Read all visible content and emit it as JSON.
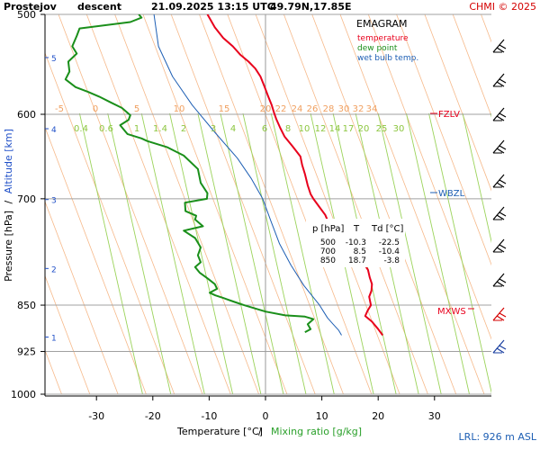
{
  "header": {
    "station": "Prostejov",
    "phase": "descent",
    "datetime": "21.09.2025 13:15 UTC",
    "coords": "49.79N,17.85E",
    "credit": "CHMI © 2025"
  },
  "chart_data": {
    "type": "line",
    "title": "EMAGRAM",
    "xlabel_temperature": "Temperature [°C]",
    "xlabel_separator": "/",
    "xlabel_mixing": "Mixing ratio [g/kg]",
    "ylabel_pressure": "Pressure [hPa]",
    "ylabel_separator": "/",
    "ylabel_altitude": "Altitude [km]",
    "xlim": [
      -39,
      40
    ],
    "ylim": [
      1000,
      500
    ],
    "x_ticks": [
      -30,
      -20,
      -10,
      0,
      10,
      20,
      30
    ],
    "pressure_ticks": [
      500,
      600,
      700,
      850,
      925,
      1000
    ],
    "altitude_ticks": [
      {
        "label": "1",
        "p": 901
      },
      {
        "label": "2",
        "p": 795
      },
      {
        "label": "3",
        "p": 701
      },
      {
        "label": "4",
        "p": 616
      },
      {
        "label": "5",
        "p": 541
      }
    ],
    "isotherm_labels": [
      "-5",
      "0",
      "5",
      "10",
      "15",
      "20",
      "22",
      "24",
      "26",
      "28",
      "30",
      "32",
      "34"
    ],
    "mixing_ratio_labels": [
      "0.4",
      "0.6",
      "1",
      "1.4",
      "2",
      "3",
      "4",
      "6",
      "8",
      "10",
      "12",
      "14",
      "17",
      "20",
      "25",
      "30"
    ],
    "legend": {
      "temperature": "temperature",
      "dew_point": "dew point",
      "wet_bulb": "wet bulb temp."
    },
    "levels": {
      "fzlv": {
        "label": "FZLV",
        "p": 600
      },
      "wbzl": {
        "label": "WBZL",
        "p": 693
      },
      "mxws": {
        "label": "MXWS",
        "p": 850
      }
    },
    "lrl": "LRL: 926 m ASL",
    "table": {
      "headers": [
        "p [hPa]",
        "T",
        "Td [°C]"
      ],
      "rows": [
        [
          "500",
          "-10.3",
          "-22.5"
        ],
        [
          "700",
          "8.5",
          "-10.4"
        ],
        [
          "850",
          "18.7",
          "-3.8"
        ]
      ]
    },
    "series": [
      {
        "name": "temperature",
        "color": "#e8001c",
        "points": [
          [
            -10.3,
            500
          ],
          [
            -9,
            512
          ],
          [
            -7.5,
            522
          ],
          [
            -5.8,
            530
          ],
          [
            -4.5,
            538
          ],
          [
            -3,
            545
          ],
          [
            -1.8,
            552
          ],
          [
            -0.9,
            560
          ],
          [
            -0.2,
            570
          ],
          [
            0.5,
            581
          ],
          [
            1.1,
            590
          ],
          [
            1.5,
            598
          ],
          [
            1.9,
            605
          ],
          [
            2.6,
            615
          ],
          [
            3.4,
            625
          ],
          [
            4.8,
            636
          ],
          [
            6.2,
            648
          ],
          [
            6.5,
            658
          ],
          [
            7,
            669
          ],
          [
            7.5,
            683
          ],
          [
            8,
            694
          ],
          [
            8.5,
            700
          ],
          [
            9.5,
            710
          ],
          [
            10.6,
            721
          ],
          [
            11.3,
            733
          ],
          [
            12.8,
            745
          ],
          [
            14,
            755
          ],
          [
            15.4,
            766
          ],
          [
            16.6,
            778
          ],
          [
            17.4,
            787
          ],
          [
            18.2,
            797
          ],
          [
            18.5,
            808
          ],
          [
            18.9,
            818
          ],
          [
            18.8,
            828
          ],
          [
            18.4,
            837
          ],
          [
            18.7,
            850
          ],
          [
            18.1,
            859
          ],
          [
            17.7,
            867
          ],
          [
            18.9,
            876
          ],
          [
            20,
            888
          ],
          [
            20.8,
            898
          ]
        ]
      },
      {
        "name": "dew point",
        "color": "#1a8f1a",
        "points": [
          [
            -22.5,
            500
          ],
          [
            -22,
            503
          ],
          [
            -24,
            507
          ],
          [
            -33,
            513
          ],
          [
            -33.5,
            520
          ],
          [
            -34.3,
            530
          ],
          [
            -33.5,
            537
          ],
          [
            -35,
            545
          ],
          [
            -34.8,
            555
          ],
          [
            -35.5,
            563
          ],
          [
            -33.7,
            571
          ],
          [
            -31.5,
            576
          ],
          [
            -29.5,
            581
          ],
          [
            -27.5,
            587
          ],
          [
            -25.5,
            593
          ],
          [
            -24,
            601
          ],
          [
            -24.3,
            606
          ],
          [
            -25.8,
            612
          ],
          [
            -24.5,
            622
          ],
          [
            -22,
            627
          ],
          [
            -21,
            630
          ],
          [
            -17.5,
            637
          ],
          [
            -14.5,
            647
          ],
          [
            -12,
            663
          ],
          [
            -11.5,
            680
          ],
          [
            -10.3,
            693
          ],
          [
            -10.4,
            700
          ],
          [
            -12,
            702
          ],
          [
            -14.3,
            705
          ],
          [
            -14.2,
            716
          ],
          [
            -12.3,
            722
          ],
          [
            -12.5,
            727
          ],
          [
            -11.1,
            736
          ],
          [
            -14.5,
            742
          ],
          [
            -12.5,
            752
          ],
          [
            -11.5,
            765
          ],
          [
            -12,
            776
          ],
          [
            -11.5,
            786
          ],
          [
            -12.5,
            793
          ],
          [
            -11.7,
            801
          ],
          [
            -10.2,
            810
          ],
          [
            -9,
            818
          ],
          [
            -8.6,
            825
          ],
          [
            -9.9,
            831
          ],
          [
            -8.9,
            835
          ],
          [
            -7.5,
            839
          ],
          [
            -5.5,
            845
          ],
          [
            -3.8,
            850
          ],
          [
            0,
            860
          ],
          [
            3.5,
            866
          ],
          [
            7,
            868
          ],
          [
            8.5,
            872
          ],
          [
            7.5,
            880
          ],
          [
            8,
            888
          ],
          [
            7,
            893
          ]
        ]
      },
      {
        "name": "wet bulb temp.",
        "color": "#1e5fb4",
        "points": [
          [
            -19.8,
            500
          ],
          [
            -19,
            530
          ],
          [
            -16.5,
            560
          ],
          [
            -13,
            590
          ],
          [
            -9,
            620
          ],
          [
            -5,
            650
          ],
          [
            -2.5,
            675
          ],
          [
            -0.5,
            700
          ],
          [
            1,
            730
          ],
          [
            2.5,
            760
          ],
          [
            4.5,
            790
          ],
          [
            6.8,
            820
          ],
          [
            9.6,
            850
          ],
          [
            10.3,
            860
          ],
          [
            11,
            870
          ],
          [
            12,
            880
          ],
          [
            13,
            890
          ],
          [
            13.5,
            898
          ]
        ]
      }
    ]
  }
}
